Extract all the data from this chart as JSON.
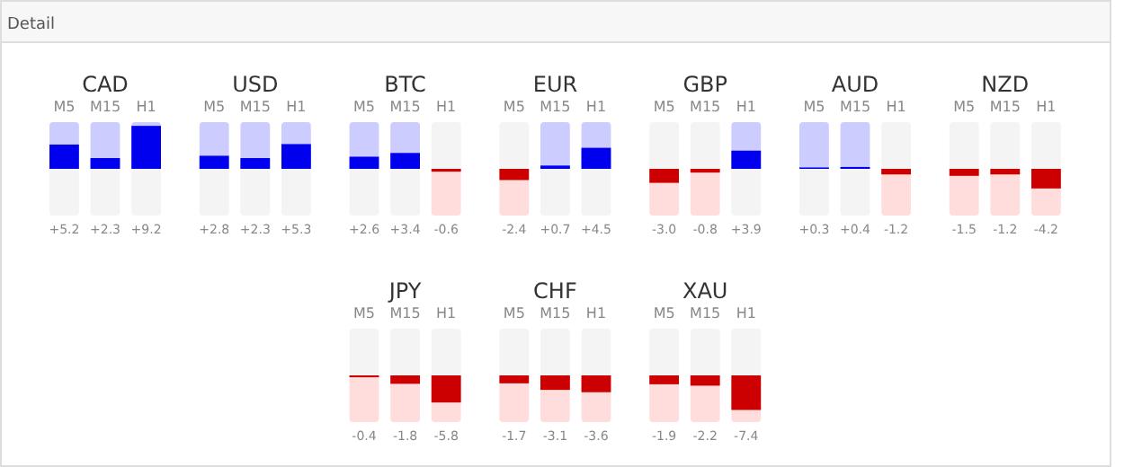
{
  "chart_data": [
    {
      "type": "bar",
      "title": "CAD",
      "annotations": [
        "Detail"
      ],
      "categories": [
        "M5",
        "M15",
        "H1"
      ],
      "values": [
        5.2,
        2.3,
        9.2
      ],
      "colors": [
        "#0000ee",
        "#0000ee",
        "#0000ee"
      ],
      "value_labels": [
        "+5.2",
        "+2.3",
        "+9.2"
      ],
      "ylim": [
        -10,
        10
      ],
      "tick_labels": "x"
    },
    {
      "type": "bar",
      "title": "USD",
      "categories": [
        "M5",
        "M15",
        "H1"
      ],
      "values": [
        2.8,
        2.3,
        5.3
      ],
      "colors": [
        "#0000ee",
        "#0000ee",
        "#0000ee"
      ],
      "value_labels": [
        "+2.8",
        "+2.3",
        "+5.3"
      ],
      "ylim": [
        -10,
        10
      ],
      "tick_labels": "x"
    },
    {
      "type": "bar",
      "title": "BTC",
      "categories": [
        "M5",
        "M15",
        "H1"
      ],
      "values": [
        2.6,
        3.4,
        -0.6
      ],
      "colors": [
        "#0000ee",
        "#0000ee",
        "#cc0000"
      ],
      "value_labels": [
        "+2.6",
        "+3.4",
        "-0.6"
      ],
      "ylim": [
        -10,
        10
      ],
      "tick_labels": "x"
    },
    {
      "type": "bar",
      "title": "EUR",
      "categories": [
        "M5",
        "M15",
        "H1"
      ],
      "values": [
        -2.4,
        0.7,
        4.5
      ],
      "colors": [
        "#cc0000",
        "#0000ee",
        "#0000ee"
      ],
      "value_labels": [
        "-2.4",
        "+0.7",
        "+4.5"
      ],
      "ylim": [
        -10,
        10
      ],
      "tick_labels": "x"
    },
    {
      "type": "bar",
      "title": "GBP",
      "categories": [
        "M5",
        "M15",
        "H1"
      ],
      "values": [
        -3.0,
        -0.8,
        3.9
      ],
      "colors": [
        "#cc0000",
        "#cc0000",
        "#0000ee"
      ],
      "value_labels": [
        "-3.0",
        "-0.8",
        "+3.9"
      ],
      "ylim": [
        -10,
        10
      ],
      "tick_labels": "x"
    },
    {
      "type": "bar",
      "title": "AUD",
      "categories": [
        "M5",
        "M15",
        "H1"
      ],
      "values": [
        0.3,
        0.4,
        -1.2
      ],
      "colors": [
        "#0000ee",
        "#0000ee",
        "#cc0000"
      ],
      "value_labels": [
        "+0.3",
        "+0.4",
        "-1.2"
      ],
      "ylim": [
        -10,
        10
      ],
      "tick_labels": "x"
    },
    {
      "type": "bar",
      "title": "NZD",
      "categories": [
        "M5",
        "M15",
        "H1"
      ],
      "values": [
        -1.5,
        -1.2,
        -4.2
      ],
      "colors": [
        "#cc0000",
        "#cc0000",
        "#cc0000"
      ],
      "value_labels": [
        "-1.5",
        "-1.2",
        "-4.2"
      ],
      "ylim": [
        -10,
        10
      ],
      "tick_labels": "x"
    },
    {
      "type": "bar",
      "title": "JPY",
      "categories": [
        "M5",
        "M15",
        "H1"
      ],
      "values": [
        -0.4,
        -1.8,
        -5.8
      ],
      "colors": [
        "#cc0000",
        "#cc0000",
        "#cc0000"
      ],
      "value_labels": [
        "-0.4",
        "-1.8",
        "-5.8"
      ],
      "ylim": [
        -10,
        10
      ],
      "tick_labels": "x"
    },
    {
      "type": "bar",
      "title": "CHF",
      "categories": [
        "M5",
        "M15",
        "H1"
      ],
      "values": [
        -1.7,
        -3.1,
        -3.6
      ],
      "colors": [
        "#cc0000",
        "#cc0000",
        "#cc0000"
      ],
      "value_labels": [
        "-1.7",
        "-3.1",
        "-3.6"
      ],
      "ylim": [
        -10,
        10
      ],
      "tick_labels": "x"
    },
    {
      "type": "bar",
      "title": "XAU",
      "categories": [
        "M5",
        "M15",
        "H1"
      ],
      "values": [
        -1.9,
        -2.2,
        -7.4
      ],
      "colors": [
        "#cc0000",
        "#cc0000",
        "#cc0000"
      ],
      "value_labels": [
        "-1.9",
        "-2.2",
        "-7.4"
      ],
      "ylim": [
        -10,
        10
      ],
      "tick_labels": "x"
    }
  ]
}
